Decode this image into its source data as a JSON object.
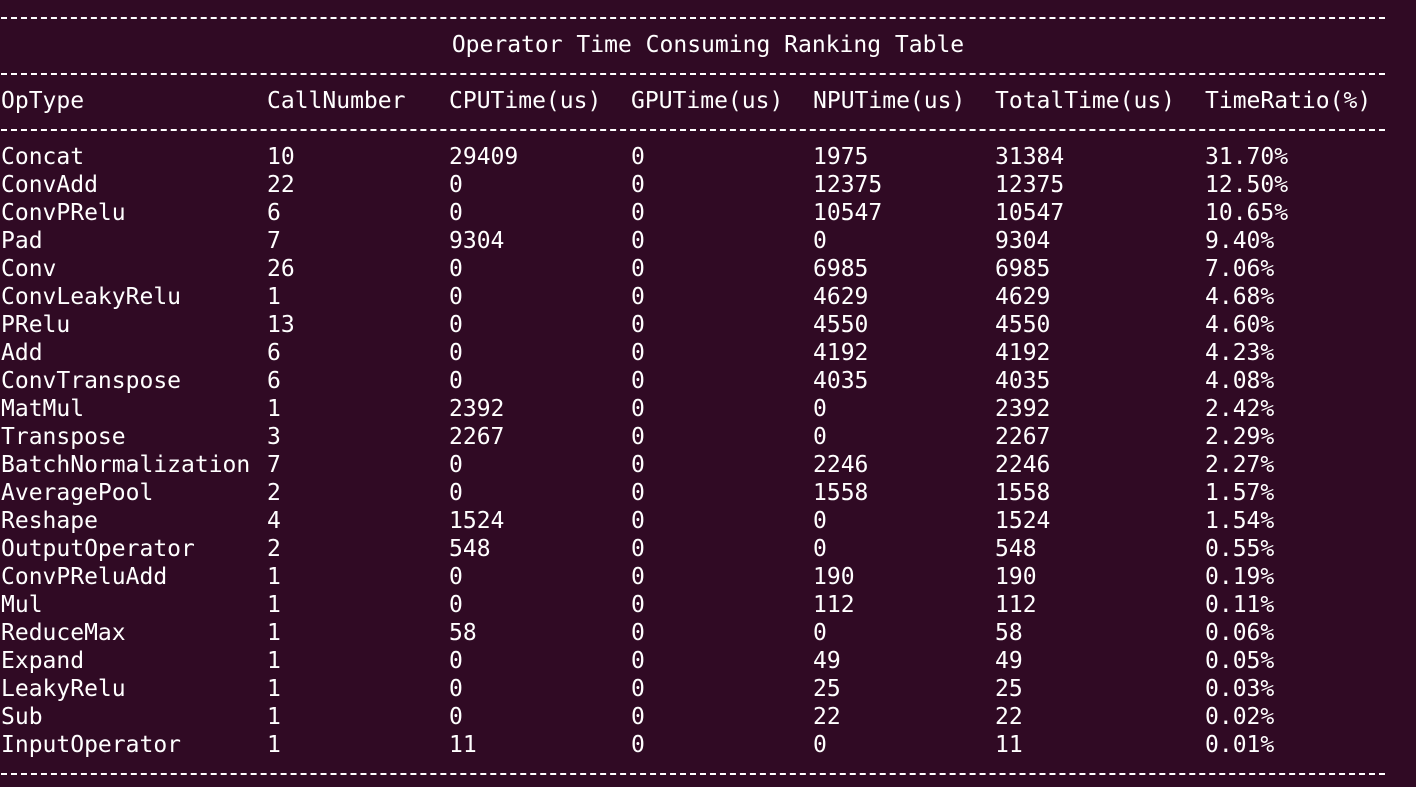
{
  "title": "Operator Time Consuming Ranking Table",
  "headers": [
    "OpType",
    "CallNumber",
    "CPUTime(us)",
    "GPUTime(us)",
    "NPUTime(us)",
    "TotalTime(us)",
    "TimeRatio(%)"
  ],
  "rows": [
    [
      "Concat",
      "10",
      "29409",
      "0",
      "1975",
      "31384",
      "31.70%"
    ],
    [
      "ConvAdd",
      "22",
      "0",
      "0",
      "12375",
      "12375",
      "12.50%"
    ],
    [
      "ConvPRelu",
      "6",
      "0",
      "0",
      "10547",
      "10547",
      "10.65%"
    ],
    [
      "Pad",
      "7",
      "9304",
      "0",
      "0",
      "9304",
      "9.40%"
    ],
    [
      "Conv",
      "26",
      "0",
      "0",
      "6985",
      "6985",
      "7.06%"
    ],
    [
      "ConvLeakyRelu",
      "1",
      "0",
      "0",
      "4629",
      "4629",
      "4.68%"
    ],
    [
      "PRelu",
      "13",
      "0",
      "0",
      "4550",
      "4550",
      "4.60%"
    ],
    [
      "Add",
      "6",
      "0",
      "0",
      "4192",
      "4192",
      "4.23%"
    ],
    [
      "ConvTranspose",
      "6",
      "0",
      "0",
      "4035",
      "4035",
      "4.08%"
    ],
    [
      "MatMul",
      "1",
      "2392",
      "0",
      "0",
      "2392",
      "2.42%"
    ],
    [
      "Transpose",
      "3",
      "2267",
      "0",
      "0",
      "2267",
      "2.29%"
    ],
    [
      "BatchNormalization",
      "7",
      "0",
      "0",
      "2246",
      "2246",
      "2.27%"
    ],
    [
      "AveragePool",
      "2",
      "0",
      "0",
      "1558",
      "1558",
      "1.57%"
    ],
    [
      "Reshape",
      "4",
      "1524",
      "0",
      "0",
      "1524",
      "1.54%"
    ],
    [
      "OutputOperator",
      "2",
      "548",
      "0",
      "0",
      "548",
      "0.55%"
    ],
    [
      "ConvPReluAdd",
      "1",
      "0",
      "0",
      "190",
      "190",
      "0.19%"
    ],
    [
      "Mul",
      "1",
      "0",
      "0",
      "112",
      "112",
      "0.11%"
    ],
    [
      "ReduceMax",
      "1",
      "58",
      "0",
      "0",
      "58",
      "0.06%"
    ],
    [
      "Expand",
      "1",
      "0",
      "0",
      "49",
      "49",
      "0.05%"
    ],
    [
      "LeakyRelu",
      "1",
      "0",
      "0",
      "25",
      "25",
      "0.03%"
    ],
    [
      "Sub",
      "1",
      "0",
      "0",
      "22",
      "22",
      "0.02%"
    ],
    [
      "InputOperator",
      "1",
      "11",
      "0",
      "0",
      "11",
      "0.01%"
    ]
  ],
  "colors": {
    "background": "#300a24",
    "text": "#ffffff"
  }
}
